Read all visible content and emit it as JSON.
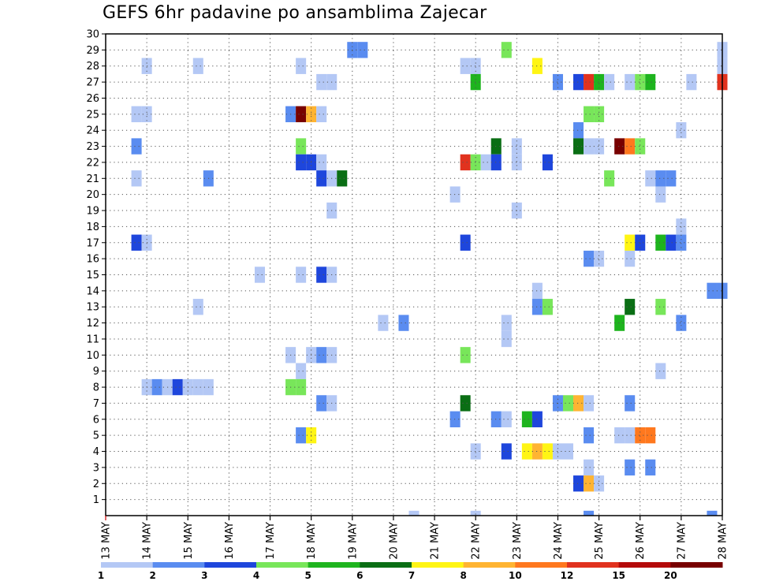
{
  "chart_data": {
    "type": "heatmap",
    "title": "GEFS 6hr padavine po ansamblima Zajecar",
    "x_tick_labels": [
      "13 MAY",
      "14 MAY",
      "15 MAY",
      "16 MAY",
      "17 MAY",
      "18 MAY",
      "19 MAY",
      "20 MAY",
      "21 MAY",
      "22 MAY",
      "23 MAY",
      "24 MAY",
      "25 MAY",
      "26 MAY",
      "27 MAY",
      "28 MAY"
    ],
    "y_tick_labels": [
      "1",
      "2",
      "3",
      "4",
      "5",
      "6",
      "7",
      "8",
      "9",
      "10",
      "11",
      "12",
      "13",
      "14",
      "15",
      "16",
      "17",
      "18",
      "19",
      "20",
      "21",
      "22",
      "23",
      "24",
      "25",
      "26",
      "27",
      "28",
      "29",
      "30"
    ],
    "x_time_steps_per_day": 4,
    "x_range_steps": [
      0,
      60
    ],
    "y_range_members": [
      0,
      30
    ],
    "grid": true,
    "colorbar": {
      "position": "bottom",
      "labels": [
        "1",
        "2",
        "3",
        "4",
        "5",
        "6",
        "7",
        "8",
        "10",
        "12",
        "15",
        "20"
      ],
      "colors": [
        "#b4c8f5",
        "#5a8cf0",
        "#1e46dc",
        "#78e65a",
        "#1eb41e",
        "#0a6e14",
        "#fff514",
        "#ffb432",
        "#ff781e",
        "#e1321e",
        "#b40a0a",
        "#780000"
      ]
    },
    "cells": [
      [
        0,
        30,
        0
      ],
      [
        0,
        59,
        1
      ],
      [
        0,
        36,
        0
      ],
      [
        0,
        47,
        1
      ],
      [
        29,
        24,
        1
      ],
      [
        29,
        25,
        1
      ],
      [
        29,
        39,
        3
      ],
      [
        29,
        60,
        0
      ],
      [
        28,
        4,
        0
      ],
      [
        28,
        9,
        0
      ],
      [
        28,
        19,
        0
      ],
      [
        28,
        35,
        0
      ],
      [
        28,
        36,
        0
      ],
      [
        28,
        42,
        6
      ],
      [
        28,
        60,
        0
      ],
      [
        27,
        21,
        0
      ],
      [
        27,
        22,
        0
      ],
      [
        27,
        36,
        4
      ],
      [
        27,
        44,
        1
      ],
      [
        27,
        46,
        2
      ],
      [
        27,
        47,
        9
      ],
      [
        27,
        48,
        4
      ],
      [
        27,
        49,
        0
      ],
      [
        27,
        51,
        0
      ],
      [
        27,
        52,
        3
      ],
      [
        27,
        53,
        4
      ],
      [
        27,
        57,
        0
      ],
      [
        27,
        60,
        9
      ],
      [
        25,
        3,
        0
      ],
      [
        25,
        4,
        0
      ],
      [
        25,
        18,
        1
      ],
      [
        25,
        19,
        11
      ],
      [
        25,
        20,
        7
      ],
      [
        25,
        21,
        0
      ],
      [
        25,
        47,
        3
      ],
      [
        25,
        48,
        3
      ],
      [
        24,
        46,
        1
      ],
      [
        24,
        56,
        0
      ],
      [
        23,
        3,
        1
      ],
      [
        23,
        19,
        3
      ],
      [
        23,
        38,
        5
      ],
      [
        23,
        40,
        0
      ],
      [
        23,
        46,
        5
      ],
      [
        23,
        47,
        0
      ],
      [
        23,
        48,
        0
      ],
      [
        23,
        50,
        11
      ],
      [
        23,
        51,
        8
      ],
      [
        23,
        52,
        3
      ],
      [
        22,
        19,
        2
      ],
      [
        22,
        20,
        2
      ],
      [
        22,
        21,
        0
      ],
      [
        22,
        35,
        9
      ],
      [
        22,
        36,
        3
      ],
      [
        22,
        37,
        0
      ],
      [
        22,
        38,
        2
      ],
      [
        22,
        40,
        0
      ],
      [
        22,
        43,
        2
      ],
      [
        21,
        3,
        0
      ],
      [
        21,
        10,
        1
      ],
      [
        21,
        21,
        2
      ],
      [
        21,
        22,
        0
      ],
      [
        21,
        23,
        5
      ],
      [
        21,
        49,
        3
      ],
      [
        21,
        53,
        0
      ],
      [
        21,
        54,
        1
      ],
      [
        21,
        55,
        1
      ],
      [
        20,
        34,
        0
      ],
      [
        20,
        54,
        0
      ],
      [
        19,
        22,
        0
      ],
      [
        19,
        40,
        0
      ],
      [
        18,
        56,
        0
      ],
      [
        17,
        3,
        2
      ],
      [
        17,
        4,
        0
      ],
      [
        17,
        35,
        2
      ],
      [
        17,
        51,
        6
      ],
      [
        17,
        52,
        2
      ],
      [
        17,
        54,
        4
      ],
      [
        17,
        55,
        2
      ],
      [
        17,
        56,
        1
      ],
      [
        16,
        47,
        1
      ],
      [
        16,
        48,
        0
      ],
      [
        16,
        51,
        0
      ],
      [
        15,
        15,
        0
      ],
      [
        15,
        19,
        0
      ],
      [
        15,
        21,
        2
      ],
      [
        15,
        22,
        0
      ],
      [
        14,
        42,
        0
      ],
      [
        14,
        59,
        1
      ],
      [
        14,
        60,
        1
      ],
      [
        13,
        9,
        0
      ],
      [
        13,
        42,
        1
      ],
      [
        13,
        43,
        3
      ],
      [
        13,
        51,
        5
      ],
      [
        13,
        54,
        3
      ],
      [
        12,
        27,
        0
      ],
      [
        12,
        29,
        1
      ],
      [
        12,
        39,
        0
      ],
      [
        12,
        50,
        4
      ],
      [
        12,
        56,
        1
      ],
      [
        11,
        39,
        0
      ],
      [
        10,
        18,
        0
      ],
      [
        10,
        20,
        0
      ],
      [
        10,
        21,
        1
      ],
      [
        10,
        22,
        0
      ],
      [
        10,
        35,
        3
      ],
      [
        9,
        19,
        0
      ],
      [
        9,
        54,
        0
      ],
      [
        8,
        4,
        0
      ],
      [
        8,
        5,
        1
      ],
      [
        8,
        6,
        0
      ],
      [
        8,
        7,
        2
      ],
      [
        8,
        8,
        0
      ],
      [
        8,
        9,
        0
      ],
      [
        8,
        10,
        0
      ],
      [
        8,
        18,
        3
      ],
      [
        8,
        19,
        3
      ],
      [
        7,
        21,
        1
      ],
      [
        7,
        22,
        0
      ],
      [
        7,
        35,
        5
      ],
      [
        7,
        44,
        1
      ],
      [
        7,
        45,
        3
      ],
      [
        7,
        46,
        7
      ],
      [
        7,
        47,
        0
      ],
      [
        7,
        51,
        1
      ],
      [
        6,
        34,
        1
      ],
      [
        6,
        38,
        1
      ],
      [
        6,
        39,
        0
      ],
      [
        6,
        41,
        4
      ],
      [
        6,
        42,
        2
      ],
      [
        5,
        19,
        1
      ],
      [
        5,
        20,
        6
      ],
      [
        5,
        47,
        1
      ],
      [
        5,
        50,
        0
      ],
      [
        5,
        51,
        0
      ],
      [
        5,
        52,
        8
      ],
      [
        5,
        53,
        8
      ],
      [
        4,
        36,
        0
      ],
      [
        4,
        39,
        2
      ],
      [
        4,
        41,
        6
      ],
      [
        4,
        42,
        7
      ],
      [
        4,
        43,
        6
      ],
      [
        4,
        44,
        0
      ],
      [
        4,
        45,
        0
      ],
      [
        3,
        47,
        0
      ],
      [
        3,
        51,
        1
      ],
      [
        3,
        53,
        1
      ],
      [
        2,
        46,
        2
      ],
      [
        2,
        47,
        7
      ],
      [
        2,
        48,
        0
      ]
    ]
  }
}
